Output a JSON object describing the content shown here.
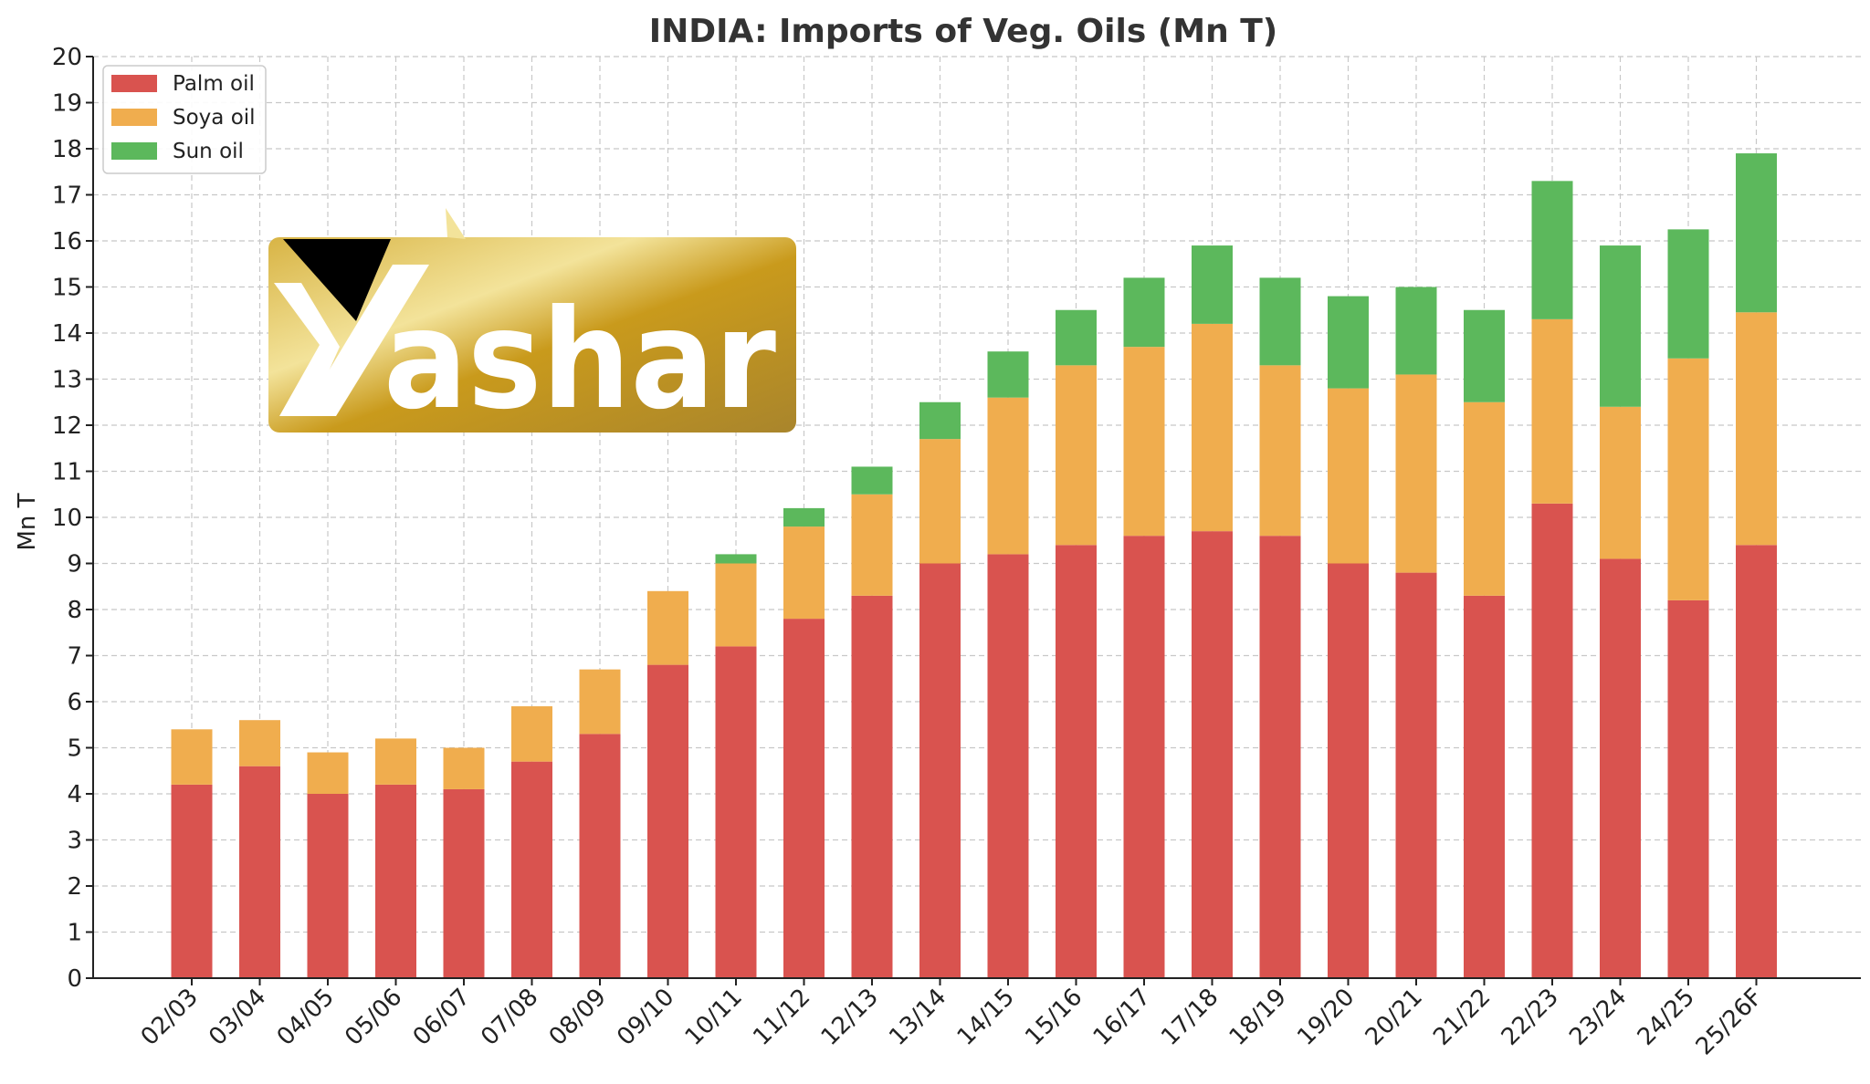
{
  "chart_data": {
    "type": "bar",
    "stacked": true,
    "title": "INDIA: Imports of Veg. Oils (Mn T)",
    "xlabel": "",
    "ylabel": "Mn T",
    "ylim": [
      0,
      20
    ],
    "yticks": [
      0,
      1,
      2,
      3,
      4,
      5,
      6,
      7,
      8,
      9,
      10,
      11,
      12,
      13,
      14,
      15,
      16,
      17,
      18,
      19,
      20
    ],
    "grid": true,
    "legend_position": "top-left",
    "categories": [
      "02/03",
      "03/04",
      "04/05",
      "05/06",
      "06/07",
      "07/08",
      "08/09",
      "09/10",
      "10/11",
      "11/12",
      "12/13",
      "13/14",
      "14/15",
      "15/16",
      "16/17",
      "17/18",
      "18/19",
      "19/20",
      "20/21",
      "21/22",
      "22/23",
      "23/24",
      "24/25",
      "25/26F"
    ],
    "series": [
      {
        "name": "Palm oil",
        "color": "#d9534f",
        "values": [
          4.2,
          4.6,
          4.0,
          4.2,
          4.1,
          4.7,
          5.3,
          6.8,
          7.2,
          7.8,
          8.3,
          9.0,
          9.2,
          9.4,
          9.6,
          9.7,
          9.6,
          9.0,
          8.8,
          8.3,
          10.3,
          9.1,
          8.2,
          9.4
        ]
      },
      {
        "name": "Soya oil",
        "color": "#f0ad4e",
        "values": [
          1.2,
          1.0,
          0.9,
          1.0,
          0.9,
          1.2,
          1.4,
          1.6,
          1.8,
          2.0,
          2.2,
          2.7,
          3.4,
          3.9,
          4.1,
          4.5,
          3.7,
          3.8,
          4.3,
          4.2,
          4.0,
          3.3,
          5.25,
          5.05
        ]
      },
      {
        "name": "Sun oil",
        "color": "#5cb85c",
        "values": [
          0,
          0,
          0,
          0,
          0,
          0,
          0,
          0,
          0.2,
          0.4,
          0.6,
          0.8,
          1.0,
          1.2,
          1.5,
          1.7,
          1.9,
          2.0,
          1.9,
          2.0,
          3.0,
          3.5,
          2.8,
          3.45
        ]
      }
    ]
  },
  "logo": {
    "text": "ashar",
    "background_color": "#c9a227",
    "triangle_color": "#000000",
    "text_color": "#ffffff"
  }
}
